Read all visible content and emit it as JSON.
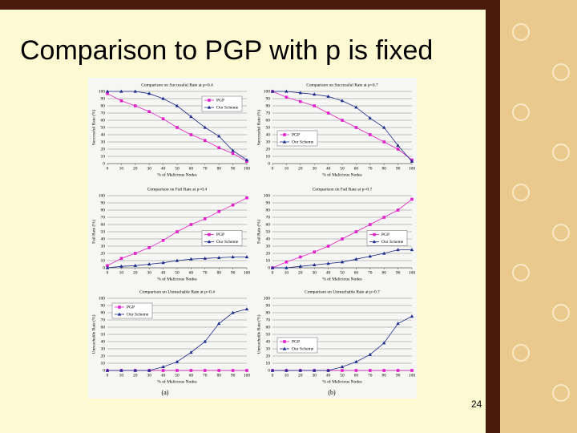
{
  "slide": {
    "title": "Comparison to PGP with p is fixed",
    "page_number": "24",
    "figure_labels": [
      "(a)",
      "(b)"
    ]
  },
  "chart_data": [
    {
      "type": "line",
      "title": "Comparison on Successful Rate at p=0.4",
      "x_label": "% of Malicious Nodes",
      "y_label": "Successful Rate (%)",
      "x": [
        0,
        10,
        20,
        30,
        40,
        50,
        60,
        70,
        80,
        90,
        100
      ],
      "xlim": [
        0,
        100
      ],
      "xticks": [
        0,
        10,
        20,
        30,
        40,
        50,
        60,
        70,
        80,
        90,
        100
      ],
      "ylim": [
        0,
        100
      ],
      "yticks": [
        0,
        10,
        20,
        30,
        40,
        50,
        60,
        70,
        80,
        90,
        100
      ],
      "grid": true,
      "legend": "upper right",
      "series": [
        {
          "name": "PGP",
          "color": "#e020c8",
          "marker": "square",
          "values": [
            97,
            87,
            80,
            72,
            62,
            50,
            40,
            32,
            22,
            14,
            3
          ]
        },
        {
          "name": "Our Scheme",
          "color": "#1a2a8a",
          "marker": "triangle",
          "values": [
            100,
            100,
            100,
            97,
            90,
            80,
            65,
            50,
            38,
            18,
            5
          ]
        }
      ]
    },
    {
      "type": "line",
      "title": "Comparison on Successful Rate at p=0.7",
      "x_label": "% of Malicious Nodes",
      "y_label": "Successful Rate (%)",
      "x": [
        0,
        10,
        20,
        30,
        40,
        50,
        60,
        70,
        80,
        90,
        100
      ],
      "xlim": [
        0,
        100
      ],
      "xticks": [
        0,
        10,
        20,
        30,
        40,
        50,
        60,
        70,
        80,
        90,
        100
      ],
      "ylim": [
        0,
        100
      ],
      "yticks": [
        0,
        10,
        20,
        30,
        40,
        50,
        60,
        70,
        80,
        90,
        100
      ],
      "grid": true,
      "legend": "lower left",
      "series": [
        {
          "name": "PGP",
          "color": "#e020c8",
          "marker": "square",
          "values": [
            100,
            92,
            86,
            80,
            70,
            60,
            50,
            40,
            30,
            20,
            5
          ]
        },
        {
          "name": "Our Scheme",
          "color": "#1a2a8a",
          "marker": "triangle",
          "values": [
            100,
            100,
            98,
            96,
            93,
            87,
            78,
            63,
            50,
            25,
            3
          ]
        }
      ]
    },
    {
      "type": "line",
      "title": "Comparison on Fail Rate at p=0.4",
      "x_label": "% of Malicious Nodes",
      "y_label": "Fail Rate (%)",
      "x": [
        0,
        10,
        20,
        30,
        40,
        50,
        60,
        70,
        80,
        90,
        100
      ],
      "xlim": [
        0,
        100
      ],
      "xticks": [
        0,
        10,
        20,
        30,
        40,
        50,
        60,
        70,
        80,
        90,
        100
      ],
      "ylim": [
        0,
        100
      ],
      "yticks": [
        0,
        10,
        20,
        30,
        40,
        50,
        60,
        70,
        80,
        90,
        100
      ],
      "grid": true,
      "legend": "center right",
      "series": [
        {
          "name": "PGP",
          "color": "#e020c8",
          "marker": "square",
          "values": [
            3,
            13,
            20,
            28,
            38,
            50,
            60,
            68,
            78,
            87,
            97
          ]
        },
        {
          "name": "Our Scheme",
          "color": "#1a2a8a",
          "marker": "triangle",
          "values": [
            0,
            2,
            3,
            5,
            7,
            10,
            12,
            13,
            14,
            15,
            15
          ]
        }
      ]
    },
    {
      "type": "line",
      "title": "Comparison on Fail Rate at p=0.7",
      "x_label": "% of Malicious Nodes",
      "y_label": "Fail Rate (%)",
      "x": [
        0,
        10,
        20,
        30,
        40,
        50,
        60,
        70,
        80,
        90,
        100
      ],
      "xlim": [
        0,
        100
      ],
      "xticks": [
        0,
        10,
        20,
        30,
        40,
        50,
        60,
        70,
        80,
        90,
        100
      ],
      "ylim": [
        0,
        100
      ],
      "yticks": [
        0,
        10,
        20,
        30,
        40,
        50,
        60,
        70,
        80,
        90,
        100
      ],
      "grid": true,
      "legend": "center right",
      "series": [
        {
          "name": "PGP",
          "color": "#e020c8",
          "marker": "square",
          "values": [
            0,
            8,
            15,
            22,
            30,
            40,
            50,
            60,
            70,
            80,
            95
          ]
        },
        {
          "name": "Our Scheme",
          "color": "#1a2a8a",
          "marker": "triangle",
          "values": [
            0,
            0,
            2,
            4,
            6,
            8,
            12,
            16,
            20,
            25,
            25
          ]
        }
      ]
    },
    {
      "type": "line",
      "title": "Comparison on Unreachable Rate at p=0.4",
      "x_label": "% of Malicious Nodes",
      "y_label": "Unreachable Rate (%)",
      "x": [
        0,
        10,
        20,
        30,
        40,
        50,
        60,
        70,
        80,
        90,
        100
      ],
      "xlim": [
        0,
        100
      ],
      "xticks": [
        0,
        10,
        20,
        30,
        40,
        50,
        60,
        70,
        80,
        90,
        100
      ],
      "ylim": [
        0,
        100
      ],
      "yticks": [
        0,
        10,
        20,
        30,
        40,
        50,
        60,
        70,
        80,
        90,
        100
      ],
      "grid": true,
      "legend": "upper left",
      "series": [
        {
          "name": "PGP",
          "color": "#e020c8",
          "marker": "square",
          "values": [
            0,
            0,
            0,
            0,
            0,
            0,
            0,
            0,
            0,
            0,
            0
          ]
        },
        {
          "name": "Our Scheme",
          "color": "#1a2a8a",
          "marker": "triangle",
          "values": [
            0,
            0,
            0,
            0,
            5,
            12,
            25,
            40,
            65,
            80,
            85
          ]
        }
      ]
    },
    {
      "type": "line",
      "title": "Comparison on Unreachable Rate at p=0.7",
      "x_label": "% of Malicious Nodes",
      "y_label": "Unreachable Rate (%)",
      "x": [
        0,
        10,
        20,
        30,
        40,
        50,
        60,
        70,
        80,
        90,
        100
      ],
      "xlim": [
        0,
        100
      ],
      "xticks": [
        0,
        10,
        20,
        30,
        40,
        50,
        60,
        70,
        80,
        90,
        100
      ],
      "ylim": [
        0,
        100
      ],
      "yticks": [
        0,
        10,
        20,
        30,
        40,
        50,
        60,
        70,
        80,
        90,
        100
      ],
      "grid": true,
      "legend": "center left",
      "series": [
        {
          "name": "PGP",
          "color": "#e020c8",
          "marker": "square",
          "values": [
            0,
            0,
            0,
            0,
            0,
            0,
            0,
            0,
            0,
            0,
            0
          ]
        },
        {
          "name": "Our Scheme",
          "color": "#1a2a8a",
          "marker": "triangle",
          "values": [
            0,
            0,
            0,
            0,
            0,
            5,
            12,
            22,
            38,
            65,
            75
          ]
        }
      ]
    }
  ]
}
